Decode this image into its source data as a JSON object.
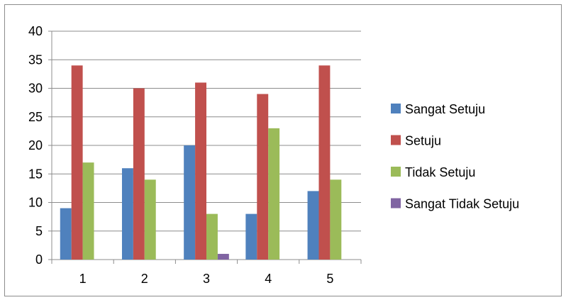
{
  "chart_data": {
    "type": "bar",
    "categories": [
      "1",
      "2",
      "3",
      "4",
      "5"
    ],
    "series": [
      {
        "name": "Sangat Setuju",
        "values": [
          9,
          16,
          20,
          8,
          12
        ],
        "color": "#4f81bd"
      },
      {
        "name": "Setuju",
        "values": [
          34,
          30,
          31,
          29,
          34
        ],
        "color": "#c0504d"
      },
      {
        "name": "Tidak Setuju",
        "values": [
          17,
          14,
          8,
          23,
          14
        ],
        "color": "#9bbb59"
      },
      {
        "name": "Sangat Tidak Setuju",
        "values": [
          0,
          0,
          1,
          0,
          0
        ],
        "color": "#8064a2"
      }
    ],
    "yticks": [
      "0",
      "5",
      "10",
      "15",
      "20",
      "25",
      "30",
      "35",
      "40"
    ],
    "ylim": [
      0,
      40
    ],
    "grid": true,
    "legend": "right",
    "title": "",
    "xlabel": "",
    "ylabel": ""
  }
}
